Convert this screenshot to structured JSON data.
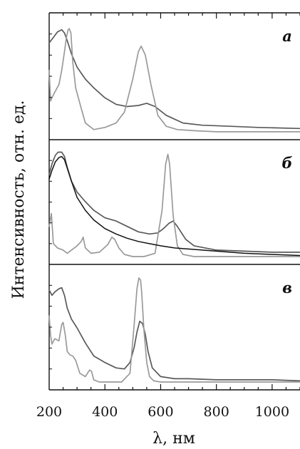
{
  "chart_data": {
    "type": "line",
    "xlabel": "λ, нм",
    "ylabel": "Интенсивность, отн. ед.",
    "xlim": [
      200,
      1100
    ],
    "xticks": [
      "200",
      "400",
      "600",
      "800",
      "1000"
    ],
    "xtick_values": [
      200,
      400,
      600,
      800,
      1000
    ],
    "grid": false,
    "colors": {
      "dark": "#5a5a5a",
      "light": "#9a9a9a",
      "black": "#111111"
    },
    "panels": [
      {
        "label": "а",
        "series": [
          {
            "color": "dark",
            "x": [
              200,
              215,
              230,
              245,
              255,
              265,
              280,
              300,
              330,
              360,
              400,
              440,
              480,
              520,
              550,
              580,
              620,
              680,
              750,
              850,
              950,
              1100
            ],
            "y": [
              0.83,
              0.88,
              0.93,
              0.95,
              0.92,
              0.85,
              0.73,
              0.61,
              0.5,
              0.42,
              0.33,
              0.27,
              0.25,
              0.26,
              0.28,
              0.25,
              0.17,
              0.1,
              0.08,
              0.07,
              0.06,
              0.05
            ]
          },
          {
            "color": "light",
            "x": [
              200,
              205,
              210,
              220,
              235,
              245,
              255,
              262,
              268,
              272,
              278,
              285,
              295,
              310,
              330,
              360,
              400,
              440,
              470,
              500,
              520,
              530,
              545,
              565,
              590,
              620,
              660,
              720,
              800,
              900,
              1000,
              1100
            ],
            "y": [
              0.58,
              0.3,
              0.33,
              0.38,
              0.45,
              0.58,
              0.75,
              0.88,
              0.95,
              0.96,
              0.92,
              0.65,
              0.42,
              0.28,
              0.1,
              0.04,
              0.06,
              0.1,
              0.2,
              0.5,
              0.75,
              0.8,
              0.72,
              0.45,
              0.17,
              0.07,
              0.04,
              0.03,
              0.02,
              0.02,
              0.02,
              0.02
            ]
          }
        ]
      },
      {
        "label": "б",
        "series": [
          {
            "color": "dark",
            "x": [
              200,
              210,
              222,
              232,
              245,
              255,
              265,
              280,
              300,
              330,
              360,
              400,
              440,
              480,
              520,
              560,
              590,
              610,
              630,
              645,
              660,
              690,
              720,
              800,
              900,
              1000,
              1100
            ],
            "y": [
              0.78,
              0.88,
              0.96,
              0.99,
              0.99,
              0.95,
              0.85,
              0.72,
              0.62,
              0.53,
              0.45,
              0.38,
              0.35,
              0.3,
              0.25,
              0.23,
              0.24,
              0.28,
              0.33,
              0.35,
              0.3,
              0.18,
              0.12,
              0.08,
              0.07,
              0.06,
              0.06
            ]
          },
          {
            "color": "light",
            "x": [
              200,
              208,
              215,
              230,
              250,
              265,
              280,
              300,
              315,
              322,
              330,
              350,
              380,
              410,
              425,
              435,
              450,
              470,
              500,
              540,
              580,
              605,
              618,
              626,
              632,
              645,
              660,
              680,
              720,
              800,
              900,
              1000,
              1100
            ],
            "y": [
              0.3,
              0.42,
              0.14,
              0.1,
              0.08,
              0.05,
              0.08,
              0.12,
              0.16,
              0.2,
              0.1,
              0.05,
              0.06,
              0.13,
              0.2,
              0.18,
              0.1,
              0.04,
              0.02,
              0.02,
              0.05,
              0.45,
              0.88,
              0.97,
              0.88,
              0.4,
              0.12,
              0.04,
              0.02,
              0.02,
              0.02,
              0.02,
              0.02
            ]
          },
          {
            "color": "black",
            "x": [
              200,
              210,
              222,
              235,
              245,
              255,
              265,
              280,
              300,
              330,
              360,
              400,
              440,
              480,
              520,
              560,
              600,
              650,
              700,
              800,
              900,
              1000,
              1100
            ],
            "y": [
              0.74,
              0.82,
              0.9,
              0.94,
              0.95,
              0.92,
              0.84,
              0.72,
              0.57,
              0.45,
              0.36,
              0.28,
              0.23,
              0.19,
              0.16,
              0.14,
              0.12,
              0.1,
              0.09,
              0.07,
              0.05,
              0.04,
              0.03
            ]
          }
        ]
      },
      {
        "label": "в",
        "series": [
          {
            "color": "dark",
            "x": [
              200,
              210,
              220,
              235,
              245,
              255,
              265,
              280,
              300,
              330,
              360,
              400,
              440,
              470,
              490,
              505,
              515,
              525,
              535,
              545,
              555,
              570,
              600,
              650,
              700,
              800,
              900,
              1000,
              1100
            ],
            "y": [
              0.87,
              0.82,
              0.85,
              0.88,
              0.89,
              0.82,
              0.7,
              0.6,
              0.52,
              0.38,
              0.26,
              0.2,
              0.15,
              0.14,
              0.2,
              0.34,
              0.48,
              0.58,
              0.56,
              0.46,
              0.3,
              0.15,
              0.07,
              0.05,
              0.05,
              0.04,
              0.04,
              0.04,
              0.03
            ]
          },
          {
            "color": "light",
            "x": [
              200,
              205,
              210,
              220,
              235,
              245,
              250,
              258,
              265,
              275,
              285,
              295,
              310,
              330,
              345,
              352,
              360,
              380,
              420,
              460,
              490,
              505,
              515,
              522,
              528,
              532,
              540,
              550,
              560,
              575,
              600,
              650,
              700,
              800,
              900,
              1000,
              1100
            ],
            "y": [
              0.63,
              0.45,
              0.37,
              0.42,
              0.4,
              0.55,
              0.57,
              0.45,
              0.3,
              0.27,
              0.26,
              0.22,
              0.1,
              0.07,
              0.13,
              0.12,
              0.04,
              0.02,
              0.02,
              0.02,
              0.1,
              0.55,
              0.88,
              0.98,
              0.96,
              0.85,
              0.5,
              0.2,
              0.07,
              0.03,
              0.02,
              0.02,
              0.02,
              0.02,
              0.02,
              0.02,
              0.02
            ]
          }
        ]
      }
    ]
  }
}
